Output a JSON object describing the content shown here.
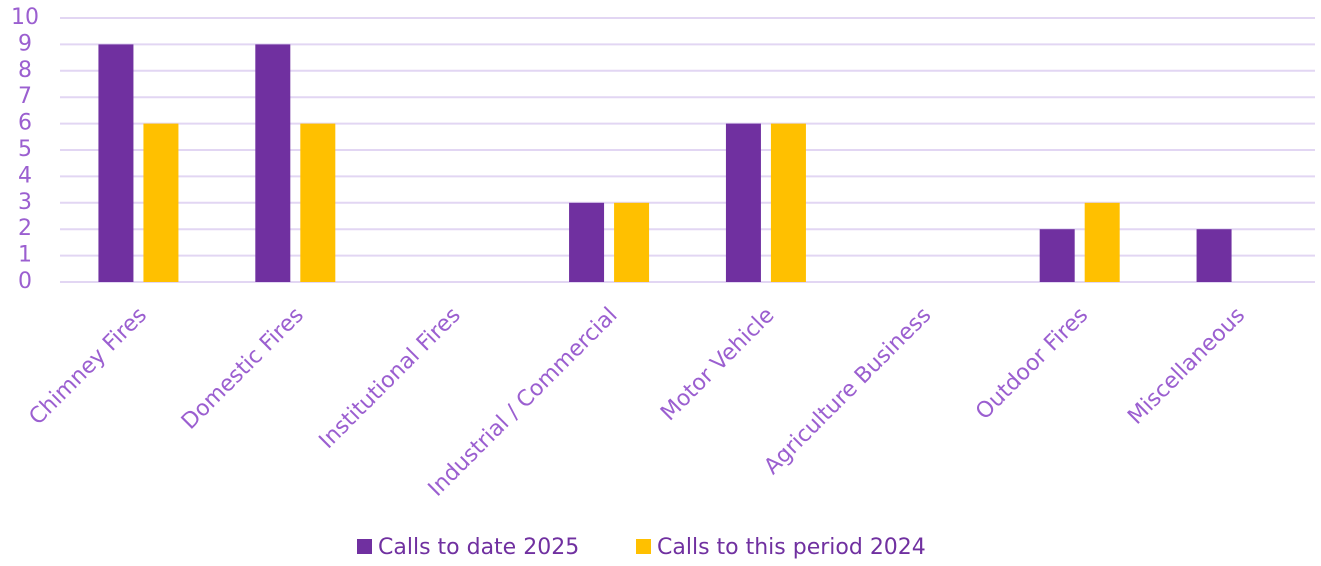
{
  "chart_data": {
    "type": "bar",
    "categories": [
      "Chimney Fires",
      "Domestic Fires",
      "Institutional Fires",
      "Industrial / Commercial",
      "Motor Vehicle",
      "Agriculture Business",
      "Outdoor Fires",
      "Miscellaneous"
    ],
    "series": [
      {
        "name": "Calls to date 2025",
        "color": "#7030a0",
        "values": [
          9,
          9,
          0,
          3,
          6,
          0,
          2,
          2
        ]
      },
      {
        "name": "Calls to this period 2024",
        "color": "#ffc000",
        "values": [
          6,
          6,
          0,
          3,
          6,
          0,
          3,
          0
        ]
      }
    ],
    "ylim": [
      0,
      10
    ],
    "yticks": [
      0,
      1,
      2,
      3,
      4,
      5,
      6,
      7,
      8,
      9,
      10
    ],
    "grid": true,
    "legend": "bottom"
  }
}
